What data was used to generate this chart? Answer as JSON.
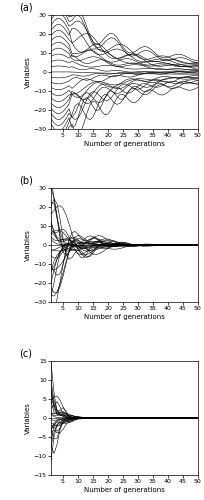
{
  "n_vars": 25,
  "n_gen": 50,
  "search_range": 30,
  "subplot_labels": [
    "(a)",
    "(b)",
    "(c)"
  ],
  "ylabel": "Variables",
  "xlabel": "Number of generations",
  "ylim_a": [
    -30,
    30
  ],
  "ylim_b": [
    -30,
    30
  ],
  "ylim_c": [
    -15,
    15
  ],
  "yticks_a": [
    -30,
    -20,
    -10,
    0,
    10,
    20,
    30
  ],
  "yticks_b": [
    -30,
    -20,
    -10,
    0,
    10,
    20,
    30
  ],
  "yticks_c": [
    -15,
    -10,
    -5,
    0,
    5,
    10,
    15
  ],
  "xticks": [
    5,
    10,
    15,
    20,
    25,
    30,
    35,
    40,
    45,
    50
  ],
  "line_color": "black",
  "line_width": 0.4,
  "figsize": [
    2.04,
    5.0
  ],
  "dpi": 100
}
